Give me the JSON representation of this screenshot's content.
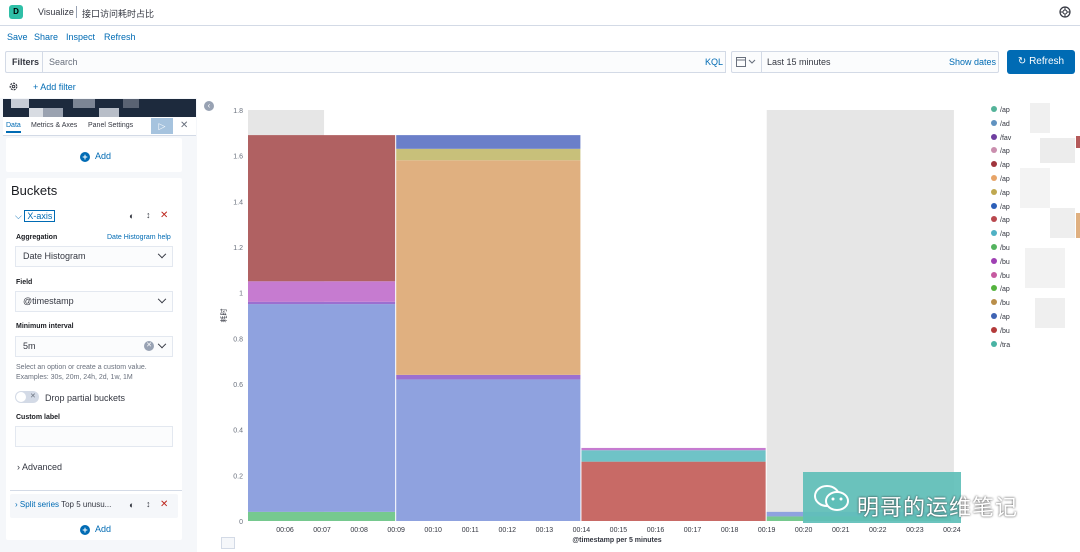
{
  "app": {
    "logo_letter": "D",
    "breadcrumb_root": "Visualize",
    "breadcrumb_current": "接口访问耗时占比"
  },
  "menu": {
    "save": "Save",
    "share": "Share",
    "inspect": "Inspect",
    "refresh": "Refresh"
  },
  "query": {
    "filters_label": "Filters",
    "search_placeholder": "Search",
    "language": "KQL",
    "time_range": "Last 15 minutes",
    "show_dates": "Show dates",
    "refresh_button": "Refresh"
  },
  "filters": {
    "add_filter": "+ Add filter"
  },
  "editor": {
    "tabs": [
      "Data",
      "Metrics & Axes",
      "Panel Settings"
    ],
    "metrics_add": "Add",
    "buckets_title": "Buckets",
    "xaxis": {
      "title": "X-axis",
      "aggregation_label": "Aggregation",
      "aggregation_help": "Date Histogram help",
      "aggregation_value": "Date Histogram",
      "field_label": "Field",
      "field_value": "@timestamp",
      "interval_label": "Minimum interval",
      "interval_value": "5m",
      "interval_help_1": "Select an option or create a custom value.",
      "interval_help_2": "Examples: 30s, 20m, 24h, 2d, 1w, 1M",
      "drop_partial": "Drop partial buckets",
      "custom_label": "Custom label",
      "advanced": "Advanced"
    },
    "split_series": {
      "title": "Split series",
      "desc": "Top 5 unusu..."
    },
    "buckets_add": "Add"
  },
  "watermark": {
    "text": "明哥的运维笔记"
  },
  "colors": {
    "accent": "#006bb4",
    "logo": "#2fbfa7",
    "danger": "#bd271e"
  },
  "legend": [
    "/ap",
    "/ad",
    "/fav",
    "/ap",
    "/ap",
    "/ap",
    "/ap",
    "/ap",
    "/ap",
    "/ap",
    "/bu",
    "/bu",
    "/bu",
    "/ap",
    "/bu",
    "/ap",
    "/bu",
    "/tra"
  ],
  "legend_colors": [
    "#54b399",
    "#6092c0",
    "#6f3fa0",
    "#ca8eae",
    "#a0343d",
    "#e7a468",
    "#bfa850",
    "#2c5fb8",
    "#b9484e",
    "#4fb1c4",
    "#54b35f",
    "#9f3fb3",
    "#c65aa0",
    "#54b33e",
    "#b98e4a",
    "#3f63b3",
    "#b33a3a",
    "#49b3a4"
  ],
  "chart_data": {
    "type": "bar",
    "stacked": true,
    "ylabel": "耗时",
    "xlabel": "@timestamp per 5 minutes",
    "ylim": [
      0,
      1.8
    ],
    "yticks": [
      "0",
      "0.2",
      "0.4",
      "0.6",
      "0.8",
      "1",
      "1.2",
      "1.4",
      "1.6",
      "1.8"
    ],
    "xticks": [
      "00:06",
      "00:07",
      "00:08",
      "00:09",
      "00:10",
      "00:11",
      "00:12",
      "00:13",
      "00:14",
      "00:15",
      "00:16",
      "00:17",
      "00:18",
      "00:19",
      "00:20",
      "00:21",
      "00:22",
      "00:23",
      "00:24"
    ],
    "partial_bucket_ranges": [
      [
        "00:06",
        "00:07"
      ],
      [
        "00:20",
        "00:24"
      ]
    ],
    "bars": [
      {
        "start": "00:06",
        "end": "00:09",
        "segments": [
          {
            "color": "#76c98f",
            "value": 0.04
          },
          {
            "color": "#8fa2df",
            "value": 0.91
          },
          {
            "color": "#9b6fd0",
            "value": 0.01
          },
          {
            "color": "#c67bd0",
            "value": 0.09
          },
          {
            "color": "#b06162",
            "value": 0.64
          }
        ]
      },
      {
        "start": "00:10",
        "end": "00:14",
        "segments": [
          {
            "color": "#8fa2df",
            "value": 0.62
          },
          {
            "color": "#9b6fd0",
            "value": 0.02
          },
          {
            "color": "#e0b080",
            "value": 0.94
          },
          {
            "color": "#c8c07a",
            "value": 0.05
          },
          {
            "color": "#6b7fc9",
            "value": 0.06
          }
        ]
      },
      {
        "start": "00:15",
        "end": "00:19",
        "segments": [
          {
            "color": "#c86a66",
            "value": 0.26
          },
          {
            "color": "#6fc3c7",
            "value": 0.05
          },
          {
            "color": "#c67bd0",
            "value": 0.01
          }
        ]
      },
      {
        "start": "00:20",
        "end": "00:24",
        "segments": [
          {
            "color": "#76c98f",
            "value": 0.02
          },
          {
            "color": "#8fa2df",
            "value": 0.02
          }
        ]
      }
    ]
  }
}
